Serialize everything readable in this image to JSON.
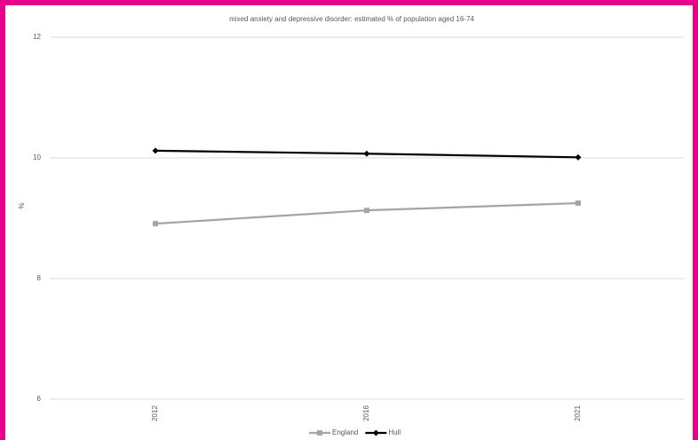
{
  "chart_data": {
    "type": "line",
    "title": "mixed anxiety and depressive disorder: estimated % of population aged 16-74",
    "y_label": "%",
    "categories": [
      "2012",
      "2016",
      "2021"
    ],
    "series": [
      {
        "name": "England",
        "color": "#a5a5a5",
        "marker": "square",
        "values": [
          8.91,
          9.13,
          9.25
        ]
      },
      {
        "name": "Hull",
        "color": "#000000",
        "marker": "diamond",
        "values": [
          10.12,
          10.07,
          10.01
        ]
      }
    ],
    "ylim": [
      6,
      12
    ],
    "yticks": [
      6,
      8,
      10,
      12
    ],
    "grid": true
  }
}
